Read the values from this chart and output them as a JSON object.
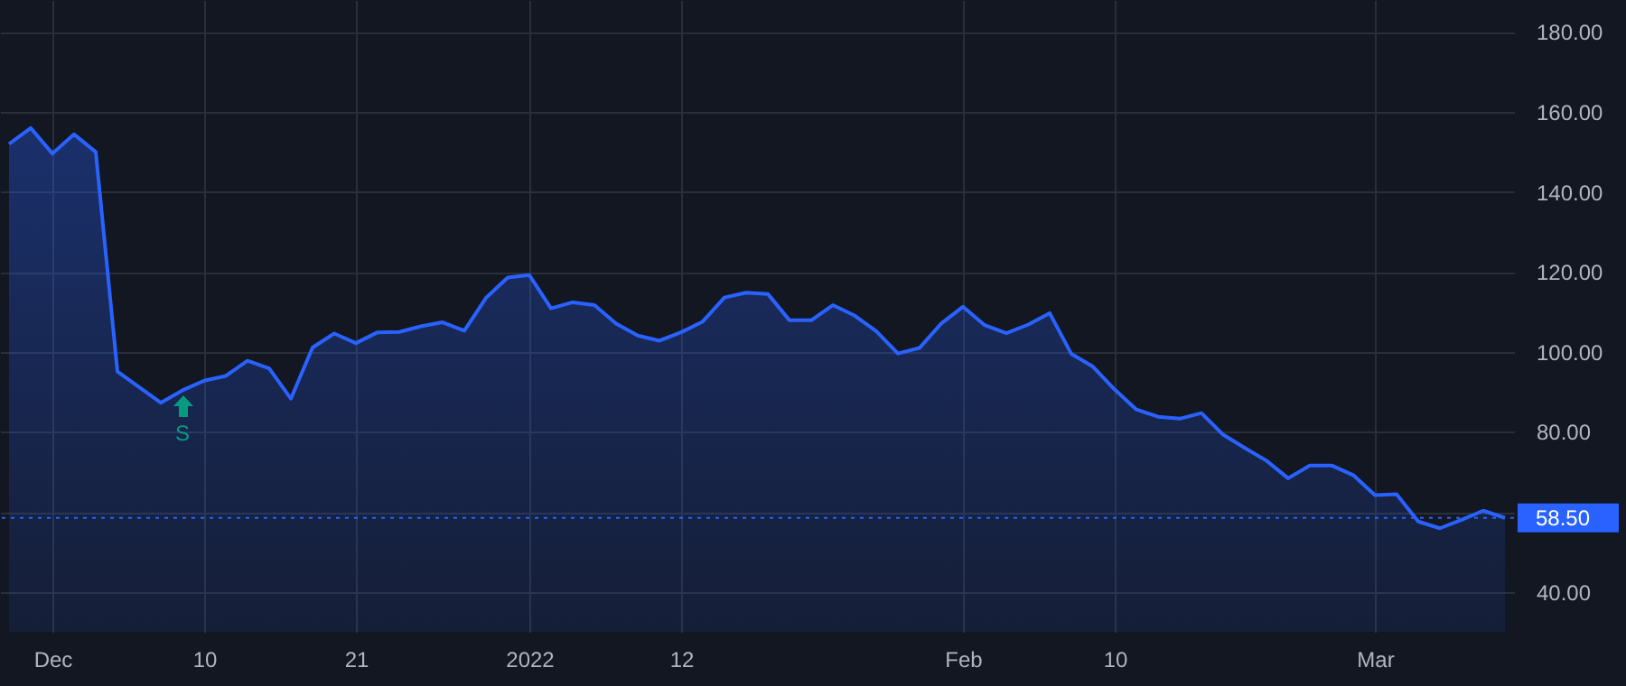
{
  "chart_data": {
    "type": "area",
    "categories": [
      null,
      null,
      "Dec",
      null,
      null,
      null,
      null,
      null,
      null,
      "10",
      null,
      null,
      null,
      null,
      null,
      null,
      "21",
      null,
      null,
      null,
      null,
      null,
      null,
      null,
      "2022",
      null,
      null,
      null,
      null,
      null,
      null,
      "12",
      null,
      null,
      null,
      null,
      null,
      null,
      null,
      null,
      null,
      null,
      null,
      null,
      "Feb",
      null,
      null,
      null,
      null,
      null,
      null,
      "10",
      null,
      null,
      null,
      null,
      null,
      null,
      null,
      null,
      null,
      null,
      null,
      "Mar",
      null,
      null,
      null,
      null,
      null,
      null
    ],
    "series": [
      {
        "color": "#2962ff",
        "values": [
          152,
          156,
          149.6,
          154.4,
          150,
          95.1,
          91.2,
          87.3,
          90.4,
          92.8,
          94,
          97.8,
          95.9,
          88.3,
          101.1,
          104.6,
          102.2,
          104.9,
          105,
          106.4,
          107.4,
          105.3,
          113.5,
          118.6,
          119.2,
          110.9,
          112.4,
          111.7,
          107.1,
          104.1,
          102.8,
          104.9,
          107.6,
          113.6,
          114.8,
          114.5,
          107.9,
          107.9,
          111.7,
          109.1,
          105.2,
          99.6,
          101,
          107.1,
          111.3,
          106.7,
          104.7,
          106.8,
          109.7,
          99.5,
          96.3,
          90.6,
          85.6,
          83.8,
          83.3,
          84.7,
          79.3,
          76,
          72.8,
          68.4,
          71.6,
          71.6,
          69.2,
          64.2,
          64.4,
          57.6,
          55.9,
          58,
          60.3,
          58.5
        ]
      }
    ],
    "ylim": [
      30,
      188
    ],
    "yticks": [
      {
        "value": 40,
        "label": "40.00"
      },
      {
        "value": 60,
        "label": null
      },
      {
        "value": 80,
        "label": "80.00"
      },
      {
        "value": 100,
        "label": "100.00"
      },
      {
        "value": 120,
        "label": "120.00"
      },
      {
        "value": 140,
        "label": "140.00"
      },
      {
        "value": 160,
        "label": "160.00"
      },
      {
        "value": 180,
        "label": "180.00"
      }
    ],
    "grid": true,
    "ref_lines": [
      {
        "axis": "y",
        "value": 58.5,
        "label": "58.50",
        "color": "#2962ff",
        "line_style": "dotted"
      }
    ],
    "annotations": [
      "S"
    ]
  }
}
